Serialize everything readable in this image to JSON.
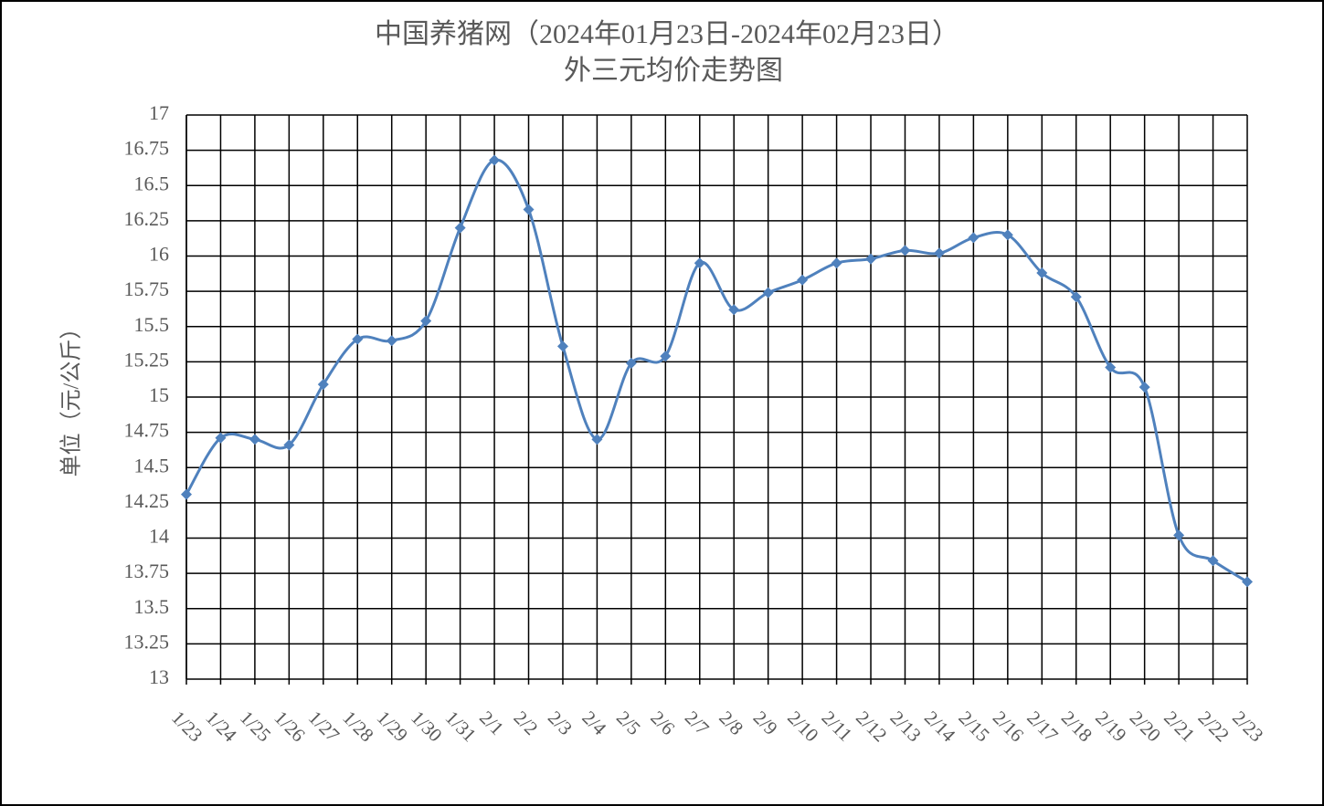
{
  "chart_data": {
    "type": "line",
    "title": "中国养猪网（2024年01月23日-2024年02月23日）",
    "subtitle": "外三元均价走势图",
    "y_label": "单位（元/公斤）",
    "categories": [
      "1/23",
      "1/24",
      "1/25",
      "1/26",
      "1/27",
      "1/28",
      "1/29",
      "1/30",
      "1/31",
      "2/1",
      "2/2",
      "2/3",
      "2/4",
      "2/5",
      "2/6",
      "2/7",
      "2/8",
      "2/9",
      "2/10",
      "2/11",
      "2/12",
      "2/13",
      "2/14",
      "2/15",
      "2/16",
      "2/17",
      "2/18",
      "2/19",
      "2/20",
      "2/21",
      "2/22",
      "2/23"
    ],
    "values": [
      14.31,
      14.71,
      14.7,
      14.66,
      15.09,
      15.41,
      15.4,
      15.54,
      16.2,
      16.68,
      16.33,
      15.36,
      14.7,
      15.24,
      15.29,
      15.95,
      15.62,
      15.74,
      15.83,
      15.95,
      15.98,
      16.04,
      16.02,
      16.13,
      16.15,
      15.88,
      15.71,
      15.21,
      15.07,
      14.02,
      13.84,
      13.69
    ],
    "color": "#4f81bd",
    "ylim": [
      13,
      17
    ],
    "yticks": [
      13,
      13.25,
      13.5,
      13.75,
      14,
      14.25,
      14.5,
      14.75,
      15,
      15.25,
      15.5,
      15.75,
      16,
      16.25,
      16.5,
      16.75,
      17
    ],
    "grid": true
  }
}
